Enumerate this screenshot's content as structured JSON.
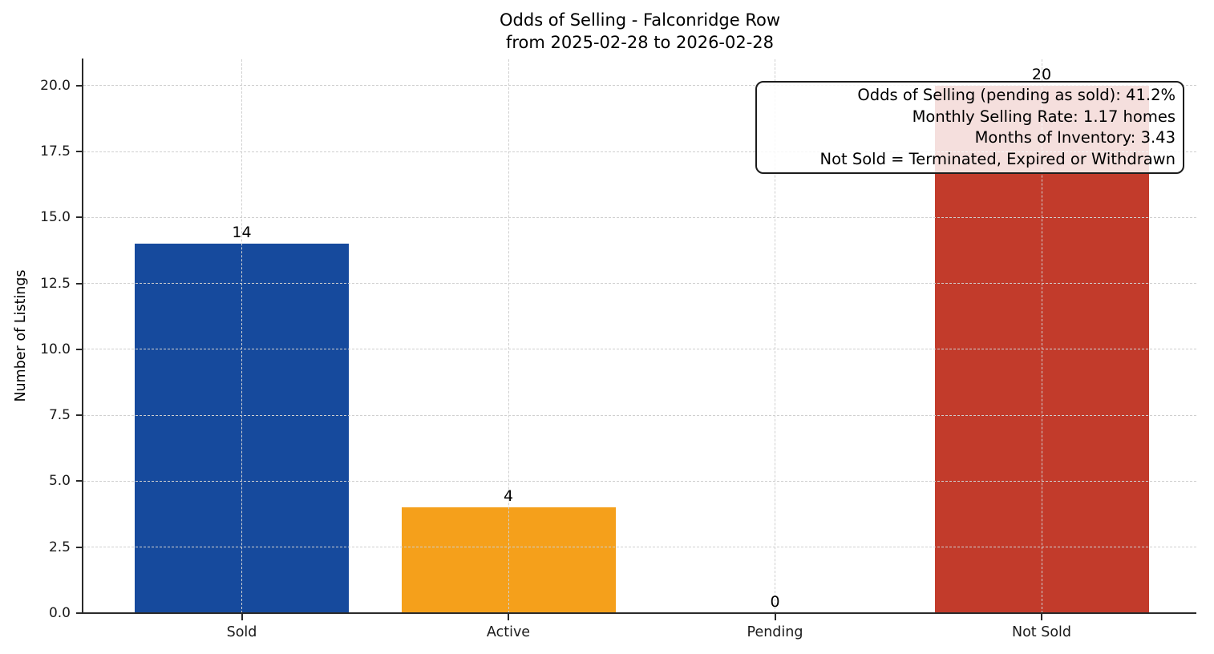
{
  "header": {
    "title_line1": "Odds of Selling - Falconridge Row",
    "title_line2": "from 2025-02-28 to 2026-02-28"
  },
  "y_axis": {
    "label": "Number of Listings",
    "tick_labels": [
      "0.0",
      "2.5",
      "5.0",
      "7.5",
      "10.0",
      "12.5",
      "15.0",
      "17.5",
      "20.0"
    ]
  },
  "x_axis": {
    "tick_labels": [
      "Sold",
      "Active",
      "Pending",
      "Not Sold"
    ]
  },
  "annotation_box": {
    "lines": [
      "Odds of Selling (pending as sold): 41.2%",
      "Monthly Selling Rate: 1.17 homes",
      "Months of Inventory: 3.43",
      "Not Sold = Terminated, Expired or Withdrawn"
    ]
  },
  "chart_data": {
    "type": "bar",
    "title": "Odds of Selling - Falconridge Row\nfrom 2025-02-28 to 2026-02-28",
    "categories": [
      "Sold",
      "Active",
      "Pending",
      "Not Sold"
    ],
    "values": [
      14,
      4,
      0,
      20
    ],
    "value_labels": [
      "14",
      "4",
      "0",
      "20"
    ],
    "bar_colors": [
      "#164A9D",
      "#F5A01B",
      null,
      "#C23B2B"
    ],
    "xlabel": "",
    "ylabel": "Number of Listings",
    "ylim": [
      0,
      21
    ],
    "yticks": [
      0,
      2.5,
      5,
      7.5,
      10,
      12.5,
      15,
      17.5,
      20
    ],
    "grid": {
      "style": "dashed",
      "axes": "both",
      "on": true
    },
    "legend": null,
    "annotation": {
      "position": "upper right",
      "text_lines": [
        "Odds of Selling (pending as sold): 41.2%",
        "Monthly Selling Rate: 1.17 homes",
        "Months of Inventory: 3.43",
        "Not Sold = Terminated, Expired or Withdrawn"
      ]
    }
  },
  "colors": {
    "bar_sold": "#164A9D",
    "bar_active": "#F5A01B",
    "bar_not_sold": "#C23B2B",
    "grid": "#cfcfcf",
    "axis": "#2a2a2a",
    "annotation_border": "#1c1c1c",
    "background": "#ffffff"
  }
}
